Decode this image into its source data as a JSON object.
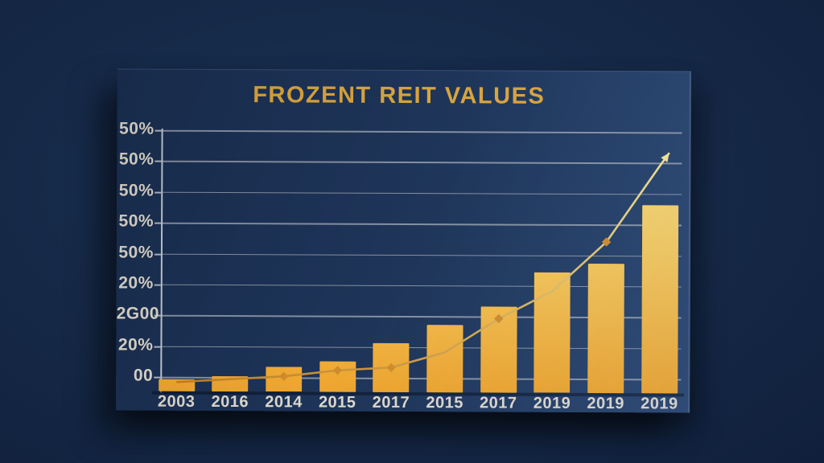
{
  "chart": {
    "title": "FROZENT REIT VALUES",
    "y_axis_labels": [
      "50%",
      "50%",
      "50%",
      "50%",
      "50%",
      "20%",
      "2G00",
      "20%",
      "00"
    ],
    "x_axis_labels": [
      "2003",
      "2016",
      "2014",
      "2015",
      "2017",
      "2015",
      "2017",
      "2019",
      "2019",
      "2019"
    ]
  },
  "colors": {
    "outer_background": "#152846",
    "card_background": "#1e3559",
    "title_gold": "#d9a43e",
    "axis_label_cream": "#ddd8cc",
    "grid_silver": "#a8afba",
    "axis_silver": "#c3c8d1",
    "bar_bottom_amber": "#eea42c",
    "bar_mid_gold": "#f4c355",
    "bar_top_pale": "#f8e383",
    "line_dark_amber": "#bf8026",
    "line_pale_gold": "#f3e392",
    "marker_amber": "#cf8c2b"
  },
  "chart_data": {
    "type": "bar",
    "title": "FROZENT REIT VALUES",
    "categories": [
      "2003",
      "2016",
      "2014",
      "2015",
      "2017",
      "2015",
      "2017",
      "2019",
      "2019",
      "2019"
    ],
    "series": [
      {
        "name": "bar-values",
        "type": "bar",
        "values": [
          4,
          5,
          8,
          10,
          16,
          22,
          28,
          39,
          42,
          61
        ]
      },
      {
        "name": "trend-line",
        "type": "line",
        "values": [
          3,
          4,
          5,
          7,
          8,
          13,
          24,
          33,
          49,
          74
        ],
        "arrow_tip_value": 78
      }
    ],
    "y_axis_tick_labels_as_shown": [
      "50%",
      "50%",
      "50%",
      "50%",
      "50%",
      "20%",
      "2G00",
      "20%",
      "00"
    ],
    "ylim": [
      0,
      90
    ],
    "grid": true,
    "legend": false,
    "notes": "Dark navy chart card on darker navy background; golden bars rising left to right with an amber trend line ending in an upward arrow; axis tick labels are garbled/repeated."
  }
}
